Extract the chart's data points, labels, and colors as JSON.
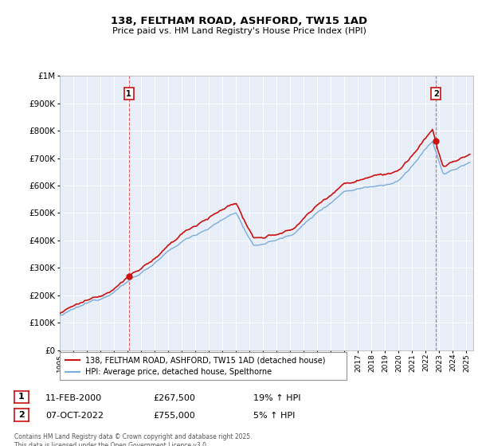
{
  "title": "138, FELTHAM ROAD, ASHFORD, TW15 1AD",
  "subtitle": "Price paid vs. HM Land Registry's House Price Index (HPI)",
  "legend_line1": "138, FELTHAM ROAD, ASHFORD, TW15 1AD (detached house)",
  "legend_line2": "HPI: Average price, detached house, Spelthorne",
  "annotation1_date": "11-FEB-2000",
  "annotation1_price": "£267,500",
  "annotation1_hpi": "19% ↑ HPI",
  "annotation2_date": "07-OCT-2022",
  "annotation2_price": "£755,000",
  "annotation2_hpi": "5% ↑ HPI",
  "footer": "Contains HM Land Registry data © Crown copyright and database right 2025.\nThis data is licensed under the Open Government Licence v3.0.",
  "hpi_color": "#7aacdc",
  "property_color": "#cc1111",
  "vline_color": "#dd4444",
  "chart_bg": "#e8eef8",
  "background_color": "#ffffff",
  "grid_color": "#ffffff",
  "ylim_min": 0,
  "ylim_max": 1000000,
  "sale1_year": 2000.1,
  "sale1_price": 267500,
  "sale2_year": 2022.75,
  "sale2_price": 755000
}
